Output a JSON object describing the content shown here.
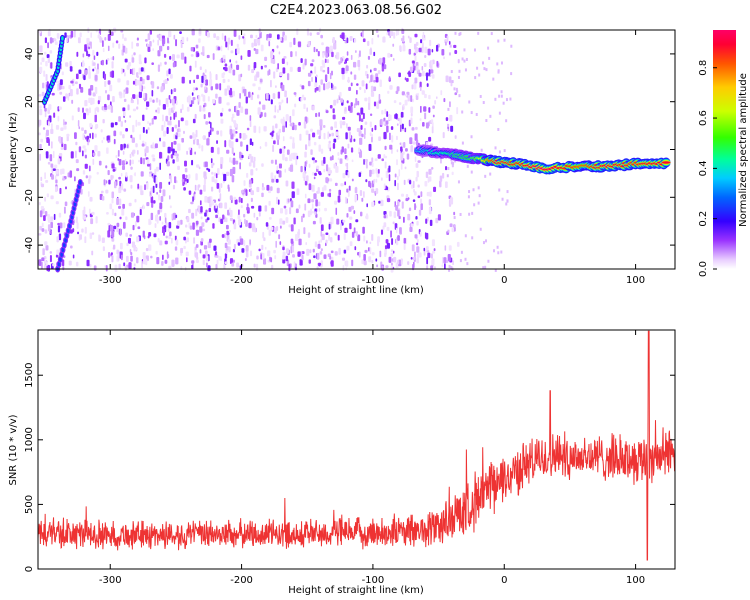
{
  "title": "C2E4.2023.063.08.56.G02",
  "chart_data": [
    {
      "type": "heatmap",
      "xlabel": "Height of straight line (km)",
      "ylabel": "Frequency (Hz)",
      "xlim": [
        -355,
        130
      ],
      "ylim": [
        -50,
        50
      ],
      "xticks": [
        -300,
        -200,
        -100,
        0,
        100
      ],
      "yticks": [
        -40,
        -20,
        0,
        20,
        40
      ],
      "colorbar": {
        "label": "Normalized spectral amplitude",
        "range": [
          0.0,
          0.95
        ],
        "ticks": [
          0.0,
          0.2,
          0.4,
          0.6,
          0.8
        ]
      },
      "noise_region": {
        "x": [
          -355,
          -45
        ],
        "y": [
          -50,
          50
        ],
        "amplitude": [
          0.02,
          0.15
        ]
      },
      "signal_track": {
        "description_values": "frequency ridge in data units",
        "points": [
          {
            "x": -65,
            "y": 0,
            "amp": 0.35
          },
          {
            "x": -55,
            "y": -1,
            "amp": 0.4
          },
          {
            "x": -40,
            "y": -2,
            "amp": 0.45
          },
          {
            "x": -30,
            "y": -3,
            "amp": 0.5
          },
          {
            "x": -20,
            "y": -4,
            "amp": 0.55
          },
          {
            "x": -5,
            "y": -5,
            "amp": 0.9
          },
          {
            "x": 10,
            "y": -6,
            "amp": 0.85
          },
          {
            "x": 30,
            "y": -8,
            "amp": 0.95
          },
          {
            "x": 60,
            "y": -7,
            "amp": 0.8
          },
          {
            "x": 80,
            "y": -7,
            "amp": 0.9
          },
          {
            "x": 100,
            "y": -6,
            "amp": 0.85
          },
          {
            "x": 125,
            "y": -6,
            "amp": 0.9
          }
        ]
      },
      "edge_streaks": [
        {
          "points": [
            {
              "x": -350,
              "y": 20
            },
            {
              "x": -340,
              "y": 33
            },
            {
              "x": -336,
              "y": 48
            }
          ],
          "amp": 0.4
        },
        {
          "points": [
            {
              "x": -340,
              "y": -50
            },
            {
              "x": -330,
              "y": -30
            },
            {
              "x": -322,
              "y": -12
            }
          ],
          "amp": 0.25
        }
      ]
    },
    {
      "type": "line",
      "xlabel": "Height of straight line (km)",
      "ylabel": "SNR (10 * v/v)",
      "xlim": [
        -355,
        130
      ],
      "ylim": [
        0,
        1850
      ],
      "xticks": [
        -300,
        -200,
        -100,
        0,
        100
      ],
      "yticks": [
        0,
        500,
        1000,
        1500
      ],
      "color": "#ee3333",
      "series": [
        {
          "envelope_x": [
            -355,
            -300,
            -200,
            -100,
            -60,
            -40,
            -20,
            0,
            20,
            40,
            60,
            80,
            100,
            130
          ],
          "baseline": [
            280,
            260,
            270,
            280,
            300,
            380,
            550,
            700,
            830,
            880,
            870,
            860,
            850,
            900
          ],
          "spread": [
            150,
            130,
            130,
            140,
            160,
            230,
            260,
            230,
            220,
            210,
            210,
            210,
            220,
            230
          ]
        }
      ],
      "spikes": [
        {
          "x": 110,
          "value": 1840
        },
        {
          "x": 109,
          "value": 70
        },
        {
          "x": 35,
          "value": 1380
        }
      ]
    }
  ]
}
